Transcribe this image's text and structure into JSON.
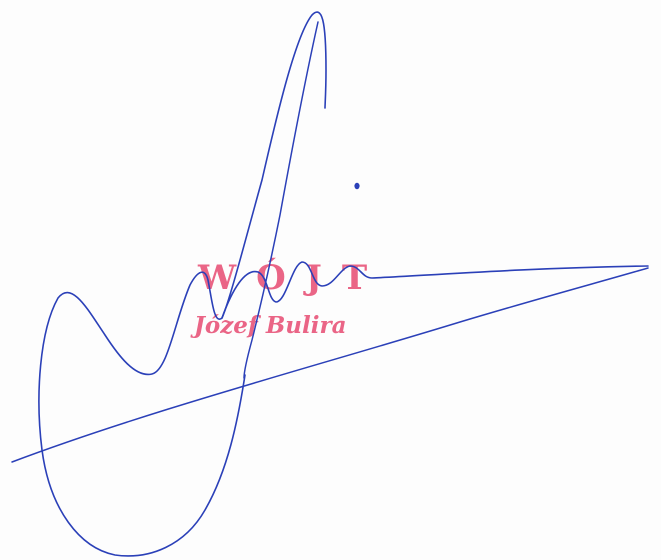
{
  "stamp": {
    "title": "WÓJT",
    "name": "Józef Bulira"
  },
  "colors": {
    "ink": "#2b40b8",
    "stamp": "#e8557a",
    "paper": "#fdfdfd"
  }
}
